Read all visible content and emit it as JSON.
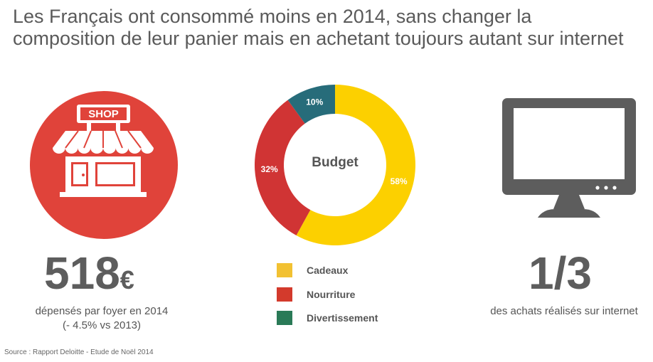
{
  "title": "Les Français ont consommé moins en 2014, sans changer la composition de leur panier mais en achetant toujours autant sur internet",
  "stats": {
    "spending": {
      "value": "518",
      "unit": "€",
      "caption_line1": "dépensés par foyer en 2014",
      "caption_line2": "(- 4.5% vs 2013)"
    },
    "online": {
      "value": "1/3",
      "caption": "des achats réalisés sur internet"
    }
  },
  "shop_sign": "SHOP",
  "colors": {
    "shop_red": "#e0433a",
    "gray": "#5d5d5d"
  },
  "icons": [
    "shop-icon",
    "monitor-icon"
  ],
  "chart_data": {
    "type": "pie",
    "title": "Budget",
    "donut": true,
    "series": [
      {
        "name": "Cadeaux",
        "value": 58,
        "label": "58%",
        "color": "#fcd000",
        "legend_color": "#f2c132"
      },
      {
        "name": "Nourriture",
        "value": 32,
        "label": "32%",
        "color": "#d03434",
        "legend_color": "#d33a2c"
      },
      {
        "name": "Divertissement",
        "value": 10,
        "label": "10%",
        "color": "#276c7a",
        "legend_color": "#2a7a57"
      }
    ],
    "legend_position": "bottom"
  },
  "source": "Source : Rapport Deloitte - Etude de Noël 2014"
}
